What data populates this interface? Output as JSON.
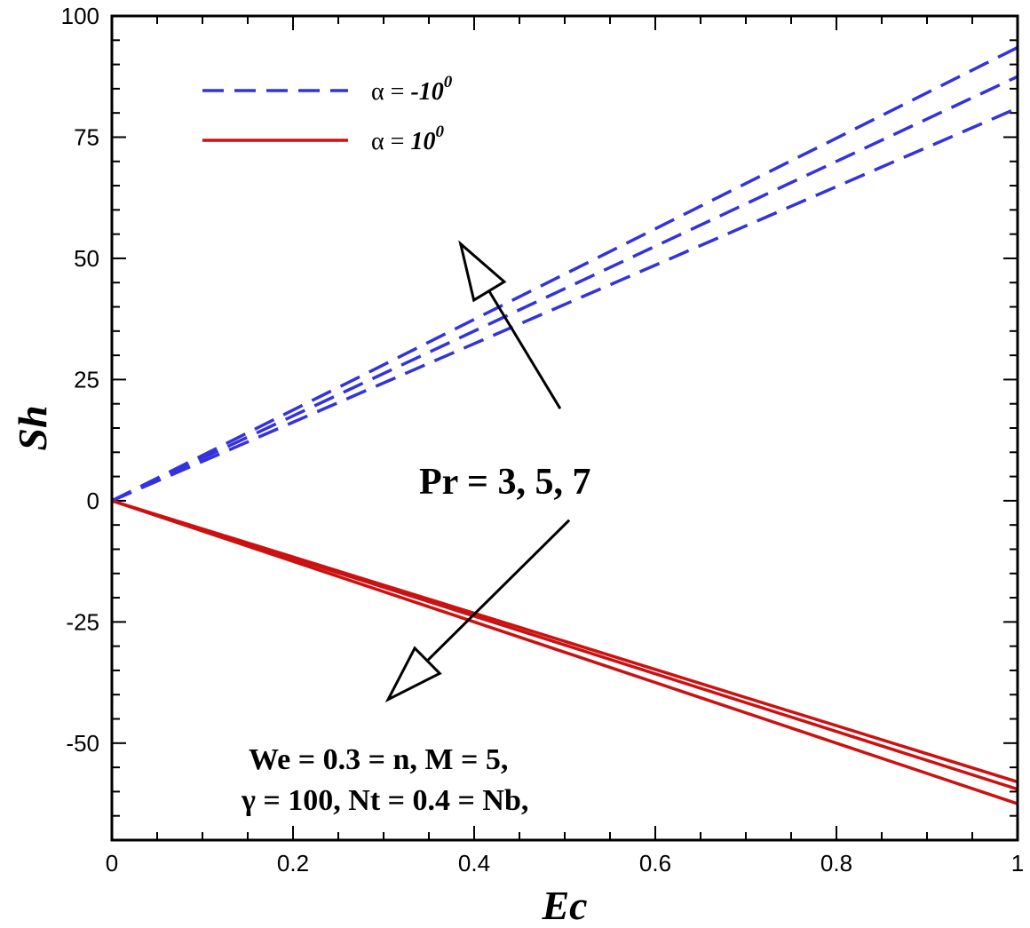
{
  "chart_data": {
    "type": "line",
    "xlabel": "Ec",
    "ylabel": "Sh",
    "xlim": [
      0,
      1
    ],
    "ylim": [
      -70,
      100
    ],
    "x_ticks": [
      0,
      0.2,
      0.4,
      0.6,
      0.8,
      1
    ],
    "x_tick_labels": [
      "0",
      "0.2",
      "0.4",
      "0.6",
      "0.8",
      "1"
    ],
    "y_ticks": [
      -50,
      -25,
      0,
      25,
      50,
      75,
      100
    ],
    "y_tick_labels": [
      "-50",
      "-25",
      "0",
      "25",
      "50",
      "75",
      "100"
    ],
    "legend": {
      "placement": "top-left",
      "entries": [
        {
          "symbol": "α",
          "eq": " = ",
          "value": "-10",
          "sup": "0",
          "color": "#3333dd",
          "dash": true
        },
        {
          "symbol": "α",
          "eq": " = ",
          "value": "10",
          "sup": "0",
          "color": "#cc1111",
          "dash": false
        }
      ]
    },
    "series_groups": [
      {
        "legend_index": 0,
        "color": "#3333dd",
        "dashed": true,
        "lines": [
          {
            "x": [
              0,
              1
            ],
            "y": [
              0,
              81
            ]
          },
          {
            "x": [
              0,
              1
            ],
            "y": [
              0,
              87.5
            ]
          },
          {
            "x": [
              0,
              1
            ],
            "y": [
              0,
              93.5
            ]
          }
        ]
      },
      {
        "legend_index": 1,
        "color": "#cc1111",
        "dashed": false,
        "lines": [
          {
            "x": [
              0,
              1
            ],
            "y": [
              0,
              -58
            ]
          },
          {
            "x": [
              0,
              1
            ],
            "y": [
              0,
              -59.5
            ]
          },
          {
            "x": [
              0,
              1
            ],
            "y": [
              0,
              -62.5
            ]
          }
        ]
      }
    ],
    "annotations": {
      "pr_label": "Pr = 3, 5, 7",
      "params_line1": "We = 0.3 = n, M = 5,",
      "params_line2": "γ = 100, Nt = 0.4 = Nb,"
    },
    "arrows": [
      {
        "from": [
          0.495,
          19
        ],
        "to": [
          0.385,
          53
        ]
      },
      {
        "from": [
          0.505,
          -4
        ],
        "to": [
          0.305,
          -41
        ]
      }
    ]
  }
}
